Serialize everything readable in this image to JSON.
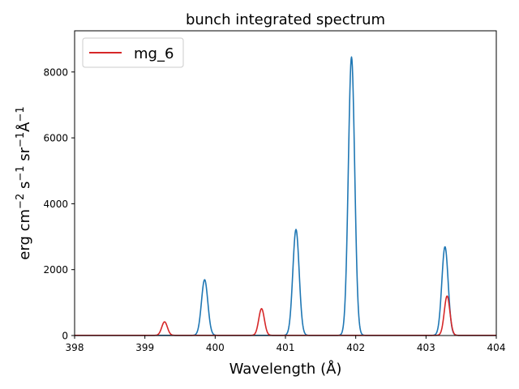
{
  "chart_data": {
    "type": "line",
    "title": "bunch integrated spectrum",
    "xlabel": "Wavelength (Å)",
    "ylabel_parts": [
      "erg cm",
      "−2",
      " s",
      "−1",
      " sr",
      "−1",
      "Å",
      "−1"
    ],
    "xlim": [
      398,
      404
    ],
    "ylim": [
      0,
      9250
    ],
    "xticks": [
      398,
      399,
      400,
      401,
      402,
      403,
      404
    ],
    "yticks": [
      0,
      2000,
      4000,
      6000,
      8000
    ],
    "legend": {
      "placement": "top-left",
      "entries": [
        "mg_6"
      ]
    },
    "grid": false,
    "series": [
      {
        "color": "#1f77b4",
        "baseline": 5,
        "peaks": [
          {
            "center": 399.85,
            "height": 1690,
            "sigma": 0.045
          },
          {
            "center": 401.15,
            "height": 3215,
            "sigma": 0.045
          },
          {
            "center": 401.94,
            "height": 8450,
            "sigma": 0.045
          },
          {
            "center": 403.27,
            "height": 2690,
            "sigma": 0.045
          }
        ]
      },
      {
        "name": "mg_6",
        "color": "#d62728",
        "baseline": 5,
        "peaks": [
          {
            "center": 399.28,
            "height": 410,
            "sigma": 0.04
          },
          {
            "center": 400.66,
            "height": 810,
            "sigma": 0.04
          },
          {
            "center": 403.3,
            "height": 1195,
            "sigma": 0.04
          }
        ]
      }
    ]
  }
}
